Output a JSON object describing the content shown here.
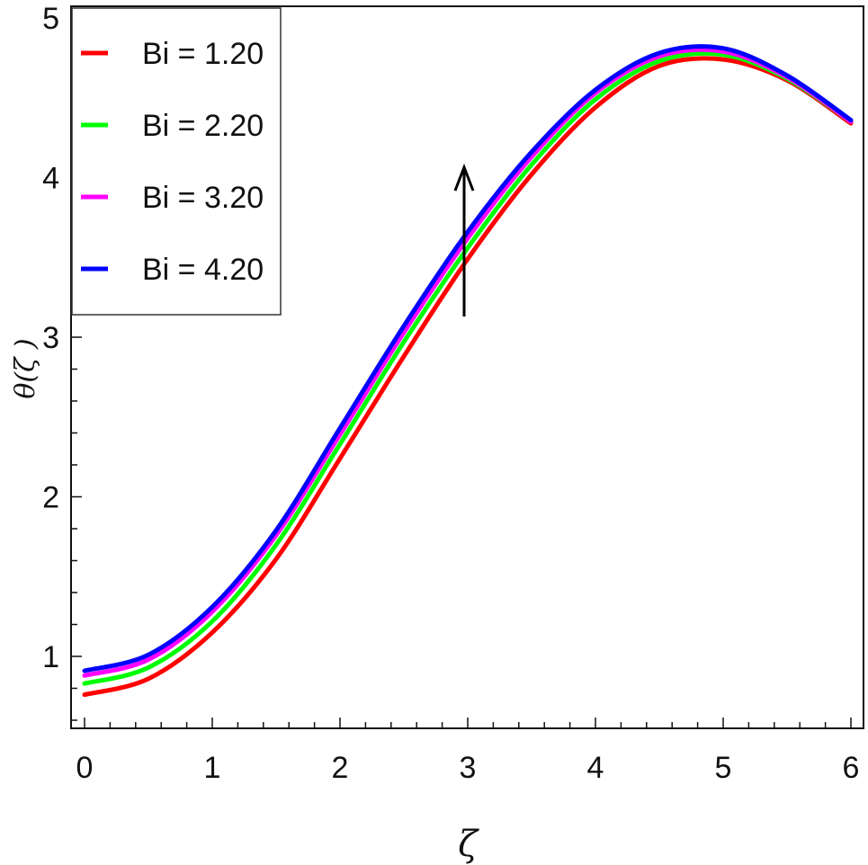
{
  "chart_data": {
    "type": "line",
    "title": "",
    "xlabel": "ζ",
    "ylabel": "θ(ζ )",
    "xlim": [
      0,
      6
    ],
    "ylim": [
      0.55,
      5
    ],
    "x_ticks": [
      "0",
      "1",
      "2",
      "3",
      "4",
      "5",
      "6"
    ],
    "y_ticks": [
      "1",
      "2",
      "3",
      "4",
      "5"
    ],
    "grid": false,
    "legend_position": "top-left",
    "annotation": "upward arrow near ζ = 3 indicating θ increases with Bi",
    "x": [
      0,
      0.5,
      1,
      1.5,
      2,
      2.5,
      3,
      3.5,
      4,
      4.5,
      5,
      5.5,
      6
    ],
    "series": [
      {
        "name": "Bi = 1.20",
        "color": "#ff0000",
        "values": [
          0.76,
          0.86,
          1.15,
          1.61,
          2.24,
          2.88,
          3.49,
          4.02,
          4.44,
          4.7,
          4.74,
          4.61,
          4.34
        ]
      },
      {
        "name": "Bi = 2.20",
        "color": "#00ff00",
        "values": [
          0.83,
          0.93,
          1.22,
          1.7,
          2.33,
          2.97,
          3.56,
          4.08,
          4.49,
          4.73,
          4.77,
          4.62,
          4.35
        ]
      },
      {
        "name": "Bi = 3.20",
        "color": "#ff00ff",
        "values": [
          0.88,
          0.98,
          1.28,
          1.76,
          2.39,
          3.03,
          3.62,
          4.13,
          4.53,
          4.76,
          4.79,
          4.63,
          4.35
        ]
      },
      {
        "name": "Bi = 4.20",
        "color": "#0000ff",
        "values": [
          0.91,
          1.01,
          1.31,
          1.79,
          2.43,
          3.07,
          3.66,
          4.16,
          4.55,
          4.78,
          4.81,
          4.64,
          4.36
        ]
      }
    ]
  }
}
